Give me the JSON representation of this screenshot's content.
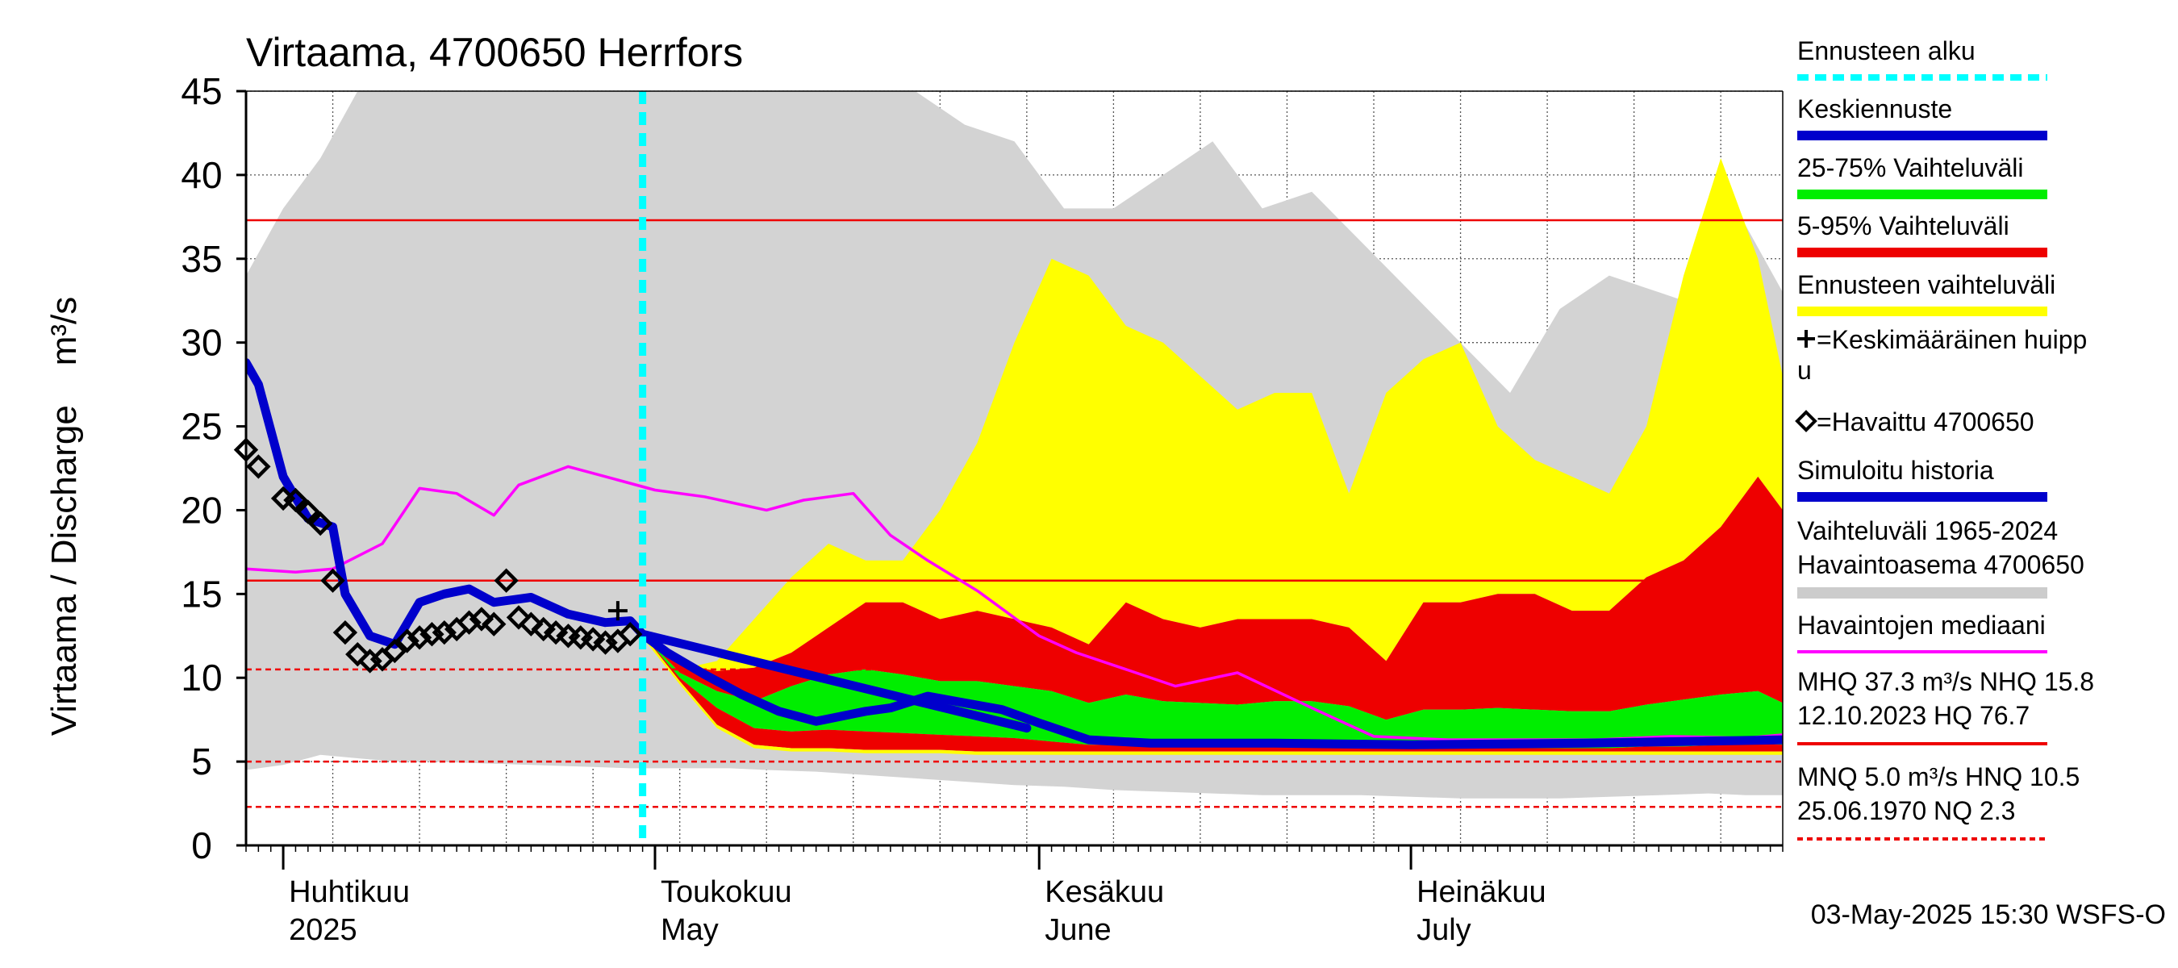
{
  "chart_data": {
    "type": "area",
    "title": "Virtaama, 4700650 Herrfors",
    "ylabel": "Virtaama / Discharge    m³/s",
    "ylim": [
      0,
      45
    ],
    "y_ticks": [
      0,
      5,
      10,
      15,
      20,
      25,
      30,
      35,
      40,
      45
    ],
    "x_start": "2025-03-29",
    "x_end": "2025-07-31",
    "grid": true,
    "month_labels": [
      {
        "date": "2025-04-01",
        "fi": "Huhtikuu",
        "en": "2025"
      },
      {
        "date": "2025-05-01",
        "fi": "Toukokuu",
        "en": "May"
      },
      {
        "date": "2025-06-01",
        "fi": "Kesäkuu",
        "en": "June"
      },
      {
        "date": "2025-07-01",
        "fi": "Heinäkuu",
        "en": "July"
      }
    ],
    "forecast_start": "2025-04-30",
    "reference_lines": [
      {
        "name": "MHQ",
        "value": 37.3,
        "style": "solid"
      },
      {
        "name": "NHQ",
        "value": 15.8,
        "style": "solid"
      },
      {
        "name": "HNQ",
        "value": 10.5,
        "style": "dashed"
      },
      {
        "name": "MNQ",
        "value": 5.0,
        "style": "dashed"
      },
      {
        "name": "NQ",
        "value": 2.3,
        "style": "dashed"
      }
    ],
    "historical_range": {
      "x": [
        "2025-03-29",
        "2025-04-01",
        "2025-04-04",
        "2025-04-07",
        "2025-04-10",
        "2025-04-13",
        "2025-04-17",
        "2025-04-21",
        "2025-04-25",
        "2025-04-29",
        "2025-05-03",
        "2025-05-07",
        "2025-05-10",
        "2025-05-14",
        "2025-05-18",
        "2025-05-22",
        "2025-05-26",
        "2025-05-30",
        "2025-06-03",
        "2025-06-07",
        "2025-06-11",
        "2025-06-15",
        "2025-06-19",
        "2025-06-23",
        "2025-06-27",
        "2025-07-01",
        "2025-07-05",
        "2025-07-09",
        "2025-07-13",
        "2025-07-17",
        "2025-07-21",
        "2025-07-25",
        "2025-07-28",
        "2025-07-31"
      ],
      "max": [
        34,
        38,
        41,
        45,
        45,
        45,
        45,
        45,
        45,
        45,
        45,
        45,
        45,
        45,
        45,
        45,
        43,
        42,
        38,
        38,
        40,
        42,
        38,
        39,
        36,
        33,
        30,
        27,
        32,
        34,
        33,
        32,
        37,
        33
      ],
      "min": [
        4.5,
        4.8,
        5.4,
        5.2,
        5.0,
        5.0,
        4.9,
        4.8,
        4.7,
        4.6,
        4.6,
        4.6,
        4.5,
        4.4,
        4.2,
        4.0,
        3.8,
        3.6,
        3.5,
        3.3,
        3.2,
        3.1,
        3.0,
        3.0,
        3.0,
        2.9,
        2.8,
        2.8,
        2.8,
        2.9,
        3.0,
        3.1,
        3.0,
        3.0
      ]
    },
    "forecast_range": {
      "x": [
        "2025-04-30",
        "2025-05-03",
        "2025-05-06",
        "2025-05-09",
        "2025-05-12",
        "2025-05-15",
        "2025-05-18",
        "2025-05-21",
        "2025-05-24",
        "2025-05-27",
        "2025-05-30",
        "2025-06-02",
        "2025-06-05",
        "2025-06-08",
        "2025-06-11",
        "2025-06-14",
        "2025-06-17",
        "2025-06-20",
        "2025-06-23",
        "2025-06-26",
        "2025-06-29",
        "2025-07-02",
        "2025-07-05",
        "2025-07-08",
        "2025-07-11",
        "2025-07-14",
        "2025-07-17",
        "2025-07-20",
        "2025-07-23",
        "2025-07-26",
        "2025-07-29",
        "2025-07-31"
      ],
      "max": [
        13,
        10.5,
        11,
        13.5,
        16,
        18,
        17,
        17,
        20,
        24,
        30,
        35,
        34,
        31,
        30,
        28,
        26,
        27,
        27,
        21,
        27,
        29,
        30,
        25,
        23,
        22,
        21,
        25,
        34,
        41,
        35,
        28
      ],
      "p95": [
        12.6,
        10.8,
        10.4,
        10.6,
        11.5,
        13,
        14.5,
        14.5,
        13.5,
        14,
        13.5,
        13,
        12,
        14.5,
        13.5,
        13,
        13.5,
        13.5,
        13.5,
        13,
        11,
        14.5,
        14.5,
        15,
        15,
        14,
        14,
        16,
        17,
        19,
        22,
        20
      ],
      "p75": [
        12.6,
        10.3,
        9.2,
        8.6,
        9.5,
        10.2,
        10.5,
        10.2,
        9.8,
        9.8,
        9.5,
        9.2,
        8.5,
        9.0,
        8.6,
        8.5,
        8.4,
        8.6,
        8.6,
        8.3,
        7.5,
        8.1,
        8.1,
        8.2,
        8.1,
        8.0,
        8.0,
        8.4,
        8.7,
        9.0,
        9.2,
        8.5
      ],
      "p25": [
        12.6,
        10,
        8.2,
        7.0,
        6.8,
        6.9,
        6.8,
        6.7,
        6.6,
        6.5,
        6.4,
        6.2,
        6.0,
        6.0,
        5.9,
        5.9,
        5.9,
        5.9,
        5.9,
        5.9,
        5.8,
        5.8,
        5.8,
        5.8,
        5.8,
        5.8,
        5.8,
        5.9,
        5.9,
        6.0,
        6.1,
        6.0
      ],
      "p5": [
        12.6,
        9.8,
        7.2,
        6.0,
        5.8,
        5.8,
        5.7,
        5.7,
        5.7,
        5.6,
        5.6,
        5.6,
        5.6,
        5.6,
        5.6,
        5.6,
        5.6,
        5.6,
        5.6,
        5.6,
        5.6,
        5.6,
        5.6,
        5.6,
        5.6,
        5.6,
        5.6,
        5.6,
        5.6,
        5.6,
        5.6,
        5.6
      ]
    },
    "series": [
      {
        "name": "Havaintojen mediaani",
        "color": "#ff00ff",
        "x": [
          "2025-03-29",
          "2025-04-02",
          "2025-04-05",
          "2025-04-09",
          "2025-04-12",
          "2025-04-15",
          "2025-04-18",
          "2025-04-20",
          "2025-04-24",
          "2025-04-28",
          "2025-05-01",
          "2025-05-05",
          "2025-05-10",
          "2025-05-13",
          "2025-05-17",
          "2025-05-20",
          "2025-05-23",
          "2025-05-27",
          "2025-06-01",
          "2025-06-04",
          "2025-06-08",
          "2025-06-12",
          "2025-06-17",
          "2025-06-23",
          "2025-06-28",
          "2025-07-04",
          "2025-07-10",
          "2025-07-16",
          "2025-07-22",
          "2025-07-28",
          "2025-07-31"
        ],
        "y": [
          16.5,
          16.3,
          16.5,
          18.0,
          21.3,
          21.0,
          19.7,
          21.5,
          22.6,
          21.8,
          21.2,
          20.8,
          20.0,
          20.6,
          21.0,
          18.5,
          17.0,
          15.2,
          12.5,
          11.5,
          10.5,
          9.5,
          10.3,
          8.2,
          6.5,
          6.3,
          6.3,
          6.3,
          6.5,
          6.4,
          6.6
        ]
      },
      {
        "name": "Simuloitu historia",
        "color": "#0000cc",
        "x": [
          "2025-03-29",
          "2025-03-30",
          "2025-04-01",
          "2025-04-03",
          "2025-04-05",
          "2025-04-06",
          "2025-04-08",
          "2025-04-10",
          "2025-04-12",
          "2025-04-14",
          "2025-04-16",
          "2025-04-18",
          "2025-04-21",
          "2025-04-24",
          "2025-04-27",
          "2025-04-29",
          "2025-04-30",
          "2025-05-02",
          "2025-05-05",
          "2025-05-08",
          "2025-05-11",
          "2025-05-14",
          "2025-05-18",
          "2025-05-20",
          "2025-05-23",
          "2025-05-26",
          "2025-05-29",
          "2025-06-01",
          "2025-06-05",
          "2025-06-10",
          "2025-06-20",
          "2025-07-01",
          "2025-07-15",
          "2025-07-31"
        ],
        "y": [
          28.8,
          27.5,
          22,
          19.5,
          19,
          15,
          12.5,
          12,
          14.5,
          15.0,
          15.3,
          14.5,
          14.8,
          13.8,
          13.3,
          13.4,
          12.6,
          11.5,
          10.2,
          9.0,
          8.0,
          7.4,
          8.0,
          8.2,
          8.9,
          8.5,
          8.1,
          7.3,
          6.3,
          6.1,
          6.1,
          6.0,
          6.1,
          6.3
        ]
      },
      {
        "name": "Keskiennuste",
        "color": "#0000cc",
        "x": [
          "2025-04-30",
          "2025-05-31"
        ],
        "y": [
          12.6,
          7.0
        ]
      }
    ],
    "observed": {
      "name": "=Havaittu 4700650",
      "x": [
        "2025-03-29",
        "2025-03-30",
        "2025-04-01",
        "2025-04-02",
        "2025-04-03",
        "2025-04-04",
        "2025-04-05",
        "2025-04-06",
        "2025-04-07",
        "2025-04-08",
        "2025-04-09",
        "2025-04-10",
        "2025-04-11",
        "2025-04-12",
        "2025-04-13",
        "2025-04-14",
        "2025-04-15",
        "2025-04-16",
        "2025-04-17",
        "2025-04-18",
        "2025-04-19",
        "2025-04-20",
        "2025-04-21",
        "2025-04-22",
        "2025-04-23",
        "2025-04-24",
        "2025-04-25",
        "2025-04-26",
        "2025-04-27",
        "2025-04-28",
        "2025-04-29"
      ],
      "y": [
        23.6,
        22.6,
        20.7,
        20.6,
        19.9,
        19.2,
        15.8,
        12.7,
        11.4,
        11.0,
        11.1,
        11.6,
        12.2,
        12.4,
        12.6,
        12.7,
        12.9,
        13.3,
        13.5,
        13.2,
        15.8,
        13.6,
        13.2,
        12.9,
        12.7,
        12.5,
        12.4,
        12.3,
        12.1,
        12.2,
        12.6
      ]
    },
    "mean_peak": {
      "name": "=Keskimääräinen huippu",
      "x": "2025-04-28",
      "y": 14.0
    },
    "legend": [
      {
        "label": "Ennusteen alku",
        "color": "#00ffff",
        "style": "dashed"
      },
      {
        "label": "Keskiennuste",
        "color": "#0000cc",
        "style": "solid"
      },
      {
        "label": "25-75% Vaihteluväli",
        "color": "#00ee00",
        "style": "solid"
      },
      {
        "label": "5-95% Vaihteluväli",
        "color": "#ee0000",
        "style": "solid"
      },
      {
        "label": "Ennusteen vaihteluväli",
        "color": "#ffff00",
        "style": "solid"
      },
      {
        "label": "=Keskimääräinen huipp",
        "label2": "u",
        "color": "#000000",
        "style": "cross"
      },
      {
        "label": "=Havaittu 4700650",
        "color": "#000000",
        "style": "diamond"
      },
      {
        "label": "Simuloitu historia",
        "color": "#0000cc",
        "style": "solid"
      },
      {
        "label": "Vaihteluväli 1965-2024",
        "label2": " Havaintoasema 4700650",
        "color": "#cccccc",
        "style": "solid"
      },
      {
        "label": "Havaintojen mediaani",
        "color": "#ff00ff",
        "style": "solid"
      },
      {
        "label": "MHQ 37.3 m³/s NHQ 15.8",
        "label2": "12.10.2023 HQ 76.7",
        "color": "#ee0000",
        "style": "solid"
      },
      {
        "label": "MNQ  5.0 m³/s HNQ 10.5",
        "label2": "25.06.1970 NQ  2.3",
        "color": "#ee0000",
        "style": "dashed"
      }
    ],
    "footer": "03-May-2025 15:30 WSFS-O"
  }
}
